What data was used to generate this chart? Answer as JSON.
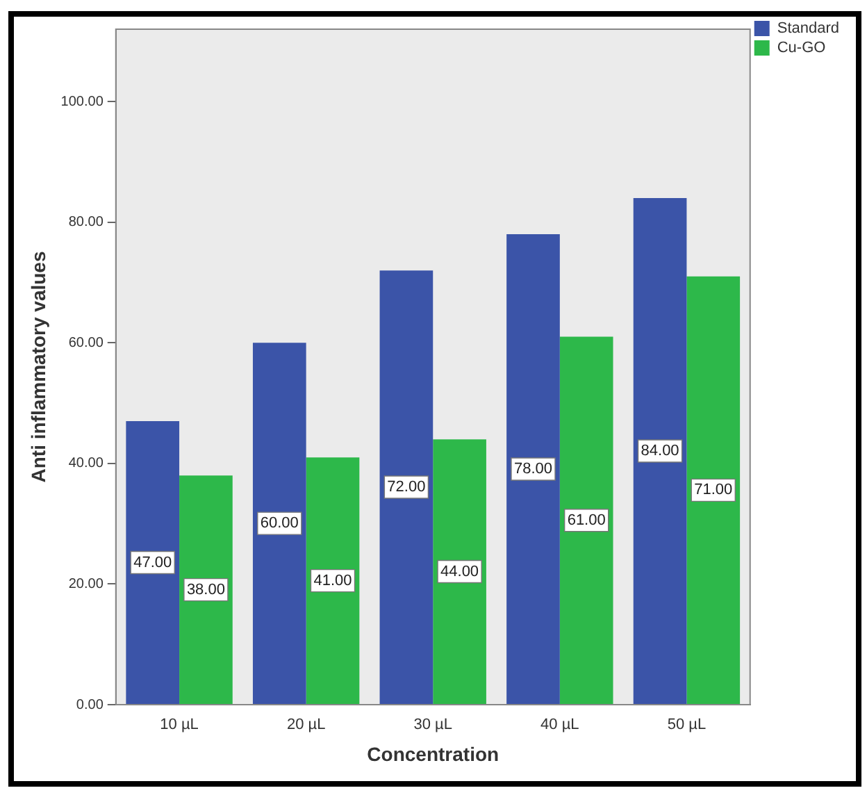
{
  "chart_data": {
    "type": "bar",
    "xlabel": "Concentration",
    "ylabel": "Anti inflammatory values",
    "categories": [
      "10 µL",
      "20 µL",
      "30 µL",
      "40 µL",
      "50 µL"
    ],
    "series": [
      {
        "name": "Standard",
        "color": "#3b54a8",
        "values": [
          47,
          60,
          72,
          78,
          84
        ],
        "value_labels": [
          "47.00",
          "60.00",
          "72.00",
          "78.00",
          "84.00"
        ]
      },
      {
        "name": "Cu-GO",
        "color": "#2db84a",
        "values": [
          38,
          41,
          44,
          61,
          71
        ],
        "value_labels": [
          "38.00",
          "41.00",
          "44.00",
          "61.00",
          "71.00"
        ]
      }
    ],
    "ylim": [
      0,
      112
    ],
    "yticks": [
      {
        "value": 0,
        "label": "0.00"
      },
      {
        "value": 20,
        "label": "20.00"
      },
      {
        "value": 40,
        "label": "40.00"
      },
      {
        "value": 60,
        "label": "60.00"
      },
      {
        "value": 80,
        "label": "80.00"
      },
      {
        "value": 100,
        "label": "100.00"
      }
    ],
    "grid": false,
    "legend": "top right"
  }
}
